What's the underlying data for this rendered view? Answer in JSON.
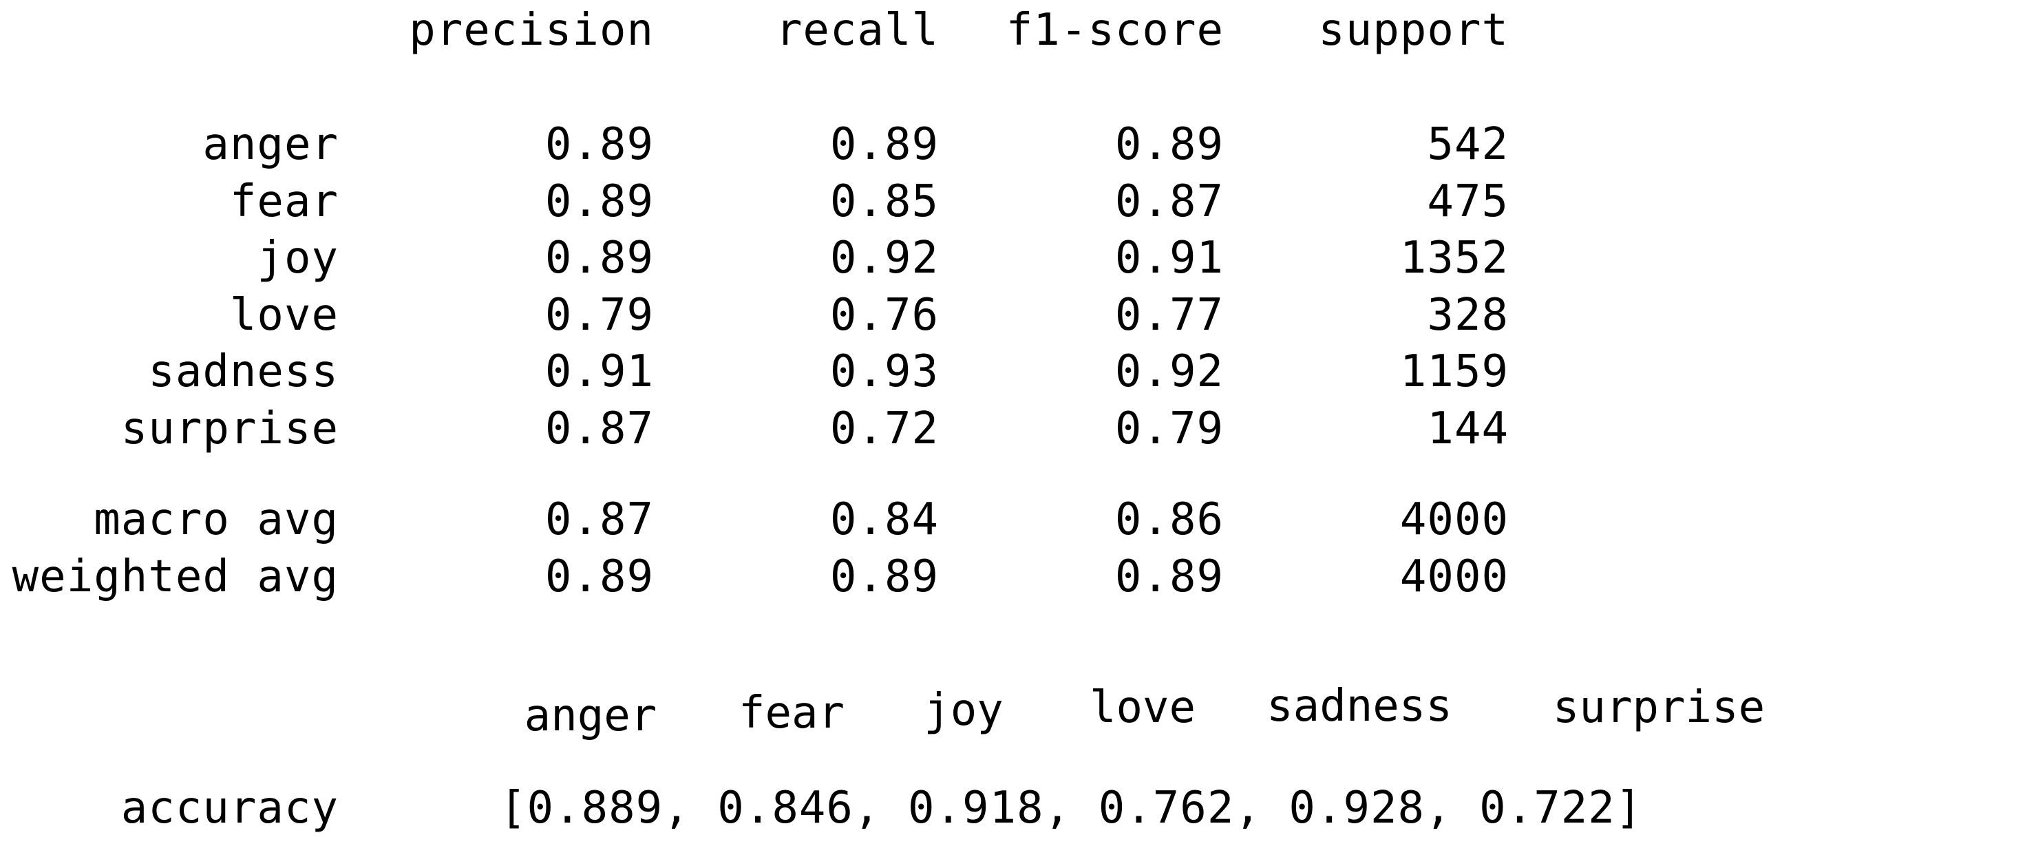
{
  "report": {
    "columns": [
      "precision",
      "recall",
      "f1-score",
      "support"
    ],
    "rows": [
      {
        "label": "anger",
        "precision": "0.89",
        "recall": "0.89",
        "f1": "0.89",
        "support": "542"
      },
      {
        "label": "fear",
        "precision": "0.89",
        "recall": "0.85",
        "f1": "0.87",
        "support": "475"
      },
      {
        "label": "joy",
        "precision": "0.89",
        "recall": "0.92",
        "f1": "0.91",
        "support": "1352"
      },
      {
        "label": "love",
        "precision": "0.79",
        "recall": "0.76",
        "f1": "0.77",
        "support": "328"
      },
      {
        "label": "sadness",
        "precision": "0.91",
        "recall": "0.93",
        "f1": "0.92",
        "support": "1159"
      },
      {
        "label": "surprise",
        "precision": "0.87",
        "recall": "0.72",
        "f1": "0.79",
        "support": "144"
      }
    ],
    "averages": [
      {
        "label": "macro avg",
        "precision": "0.87",
        "recall": "0.84",
        "f1": "0.86",
        "support": "4000"
      },
      {
        "label": "weighted avg",
        "precision": "0.89",
        "recall": "0.89",
        "f1": "0.89",
        "support": "4000"
      }
    ]
  },
  "accuracy": {
    "classes": [
      "anger",
      "fear",
      "joy",
      "love",
      "sadness",
      "surprise"
    ],
    "label": "accuracy",
    "values": "[0.889, 0.846, 0.918, 0.762, 0.928, 0.722]"
  }
}
